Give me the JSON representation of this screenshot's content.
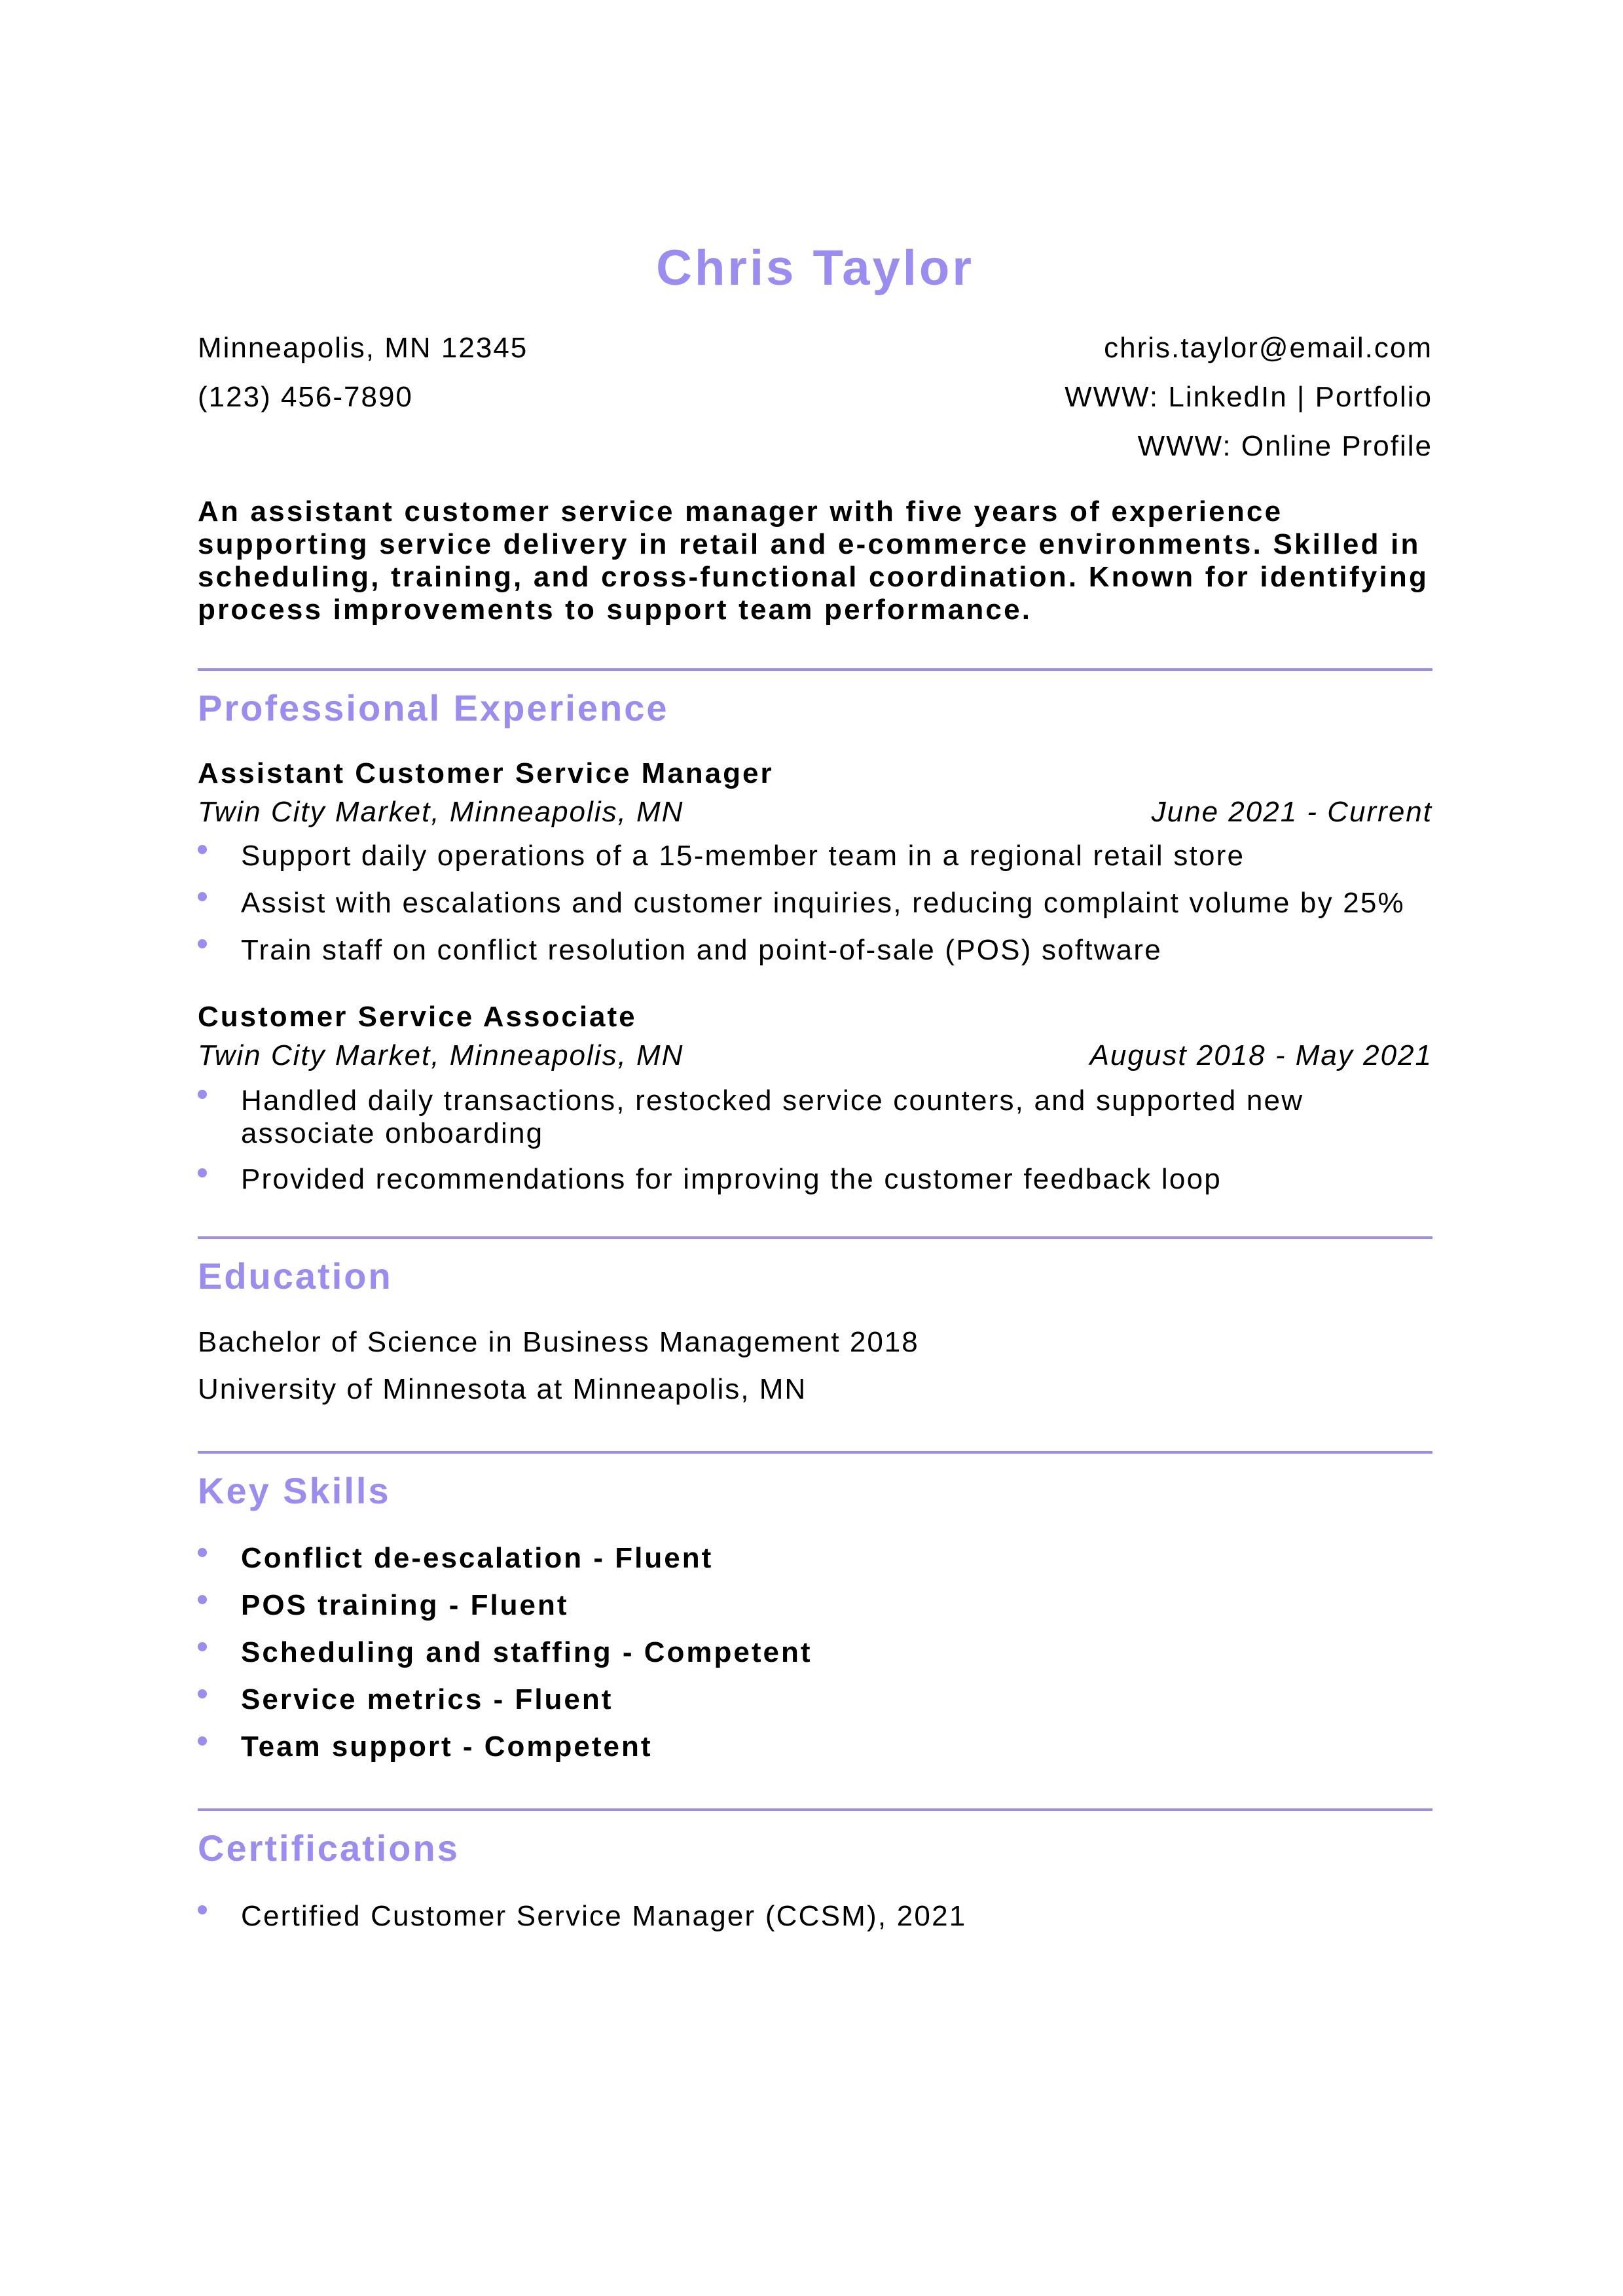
{
  "header": {
    "name": "Chris Taylor",
    "location": "Minneapolis, MN 12345",
    "phone": "(123) 456-7890",
    "email": "chris.taylor@email.com",
    "links": "WWW: LinkedIn | Portfolio",
    "profile": "WWW: Online Profile"
  },
  "summary": "An assistant customer service manager with five years of experience supporting service delivery in retail and e-commerce environments. Skilled in scheduling, training, and cross-functional coordination. Known for identifying process improvements to support team performance.",
  "experience": {
    "title": "Professional Experience",
    "jobs": [
      {
        "title": "Assistant Customer Service Manager",
        "company": "Twin City Market, Minneapolis, MN",
        "dates": "June 2021 - Current",
        "bullets": [
          "Support daily operations of a 15-member team in a regional retail store",
          "Assist with escalations and customer inquiries, reducing complaint volume by 25%",
          "Train staff on conflict resolution and point-of-sale (POS) software"
        ]
      },
      {
        "title": "Customer Service Associate",
        "company": "Twin City Market, Minneapolis, MN",
        "dates": "August 2018 - May 2021",
        "bullets": [
          "Handled daily transactions, restocked service counters, and supported new associate onboarding",
          "Provided recommendations for improving the customer feedback loop"
        ]
      }
    ]
  },
  "education": {
    "title": "Education",
    "degree": "Bachelor of Science in Business Management 2018",
    "school": "University of Minnesota at Minneapolis, MN"
  },
  "skills": {
    "title": "Key Skills",
    "items": [
      "Conflict de-escalation - Fluent",
      "POS training - Fluent",
      "Scheduling and staffing - Competent",
      "Service metrics - Fluent",
      "Team support - Competent"
    ]
  },
  "certifications": {
    "title": "Certifications",
    "items": [
      "Certified Customer Service Manager (CCSM), 2021"
    ]
  },
  "colors": {
    "accent": "#9b8cf2",
    "text": "#000000"
  }
}
